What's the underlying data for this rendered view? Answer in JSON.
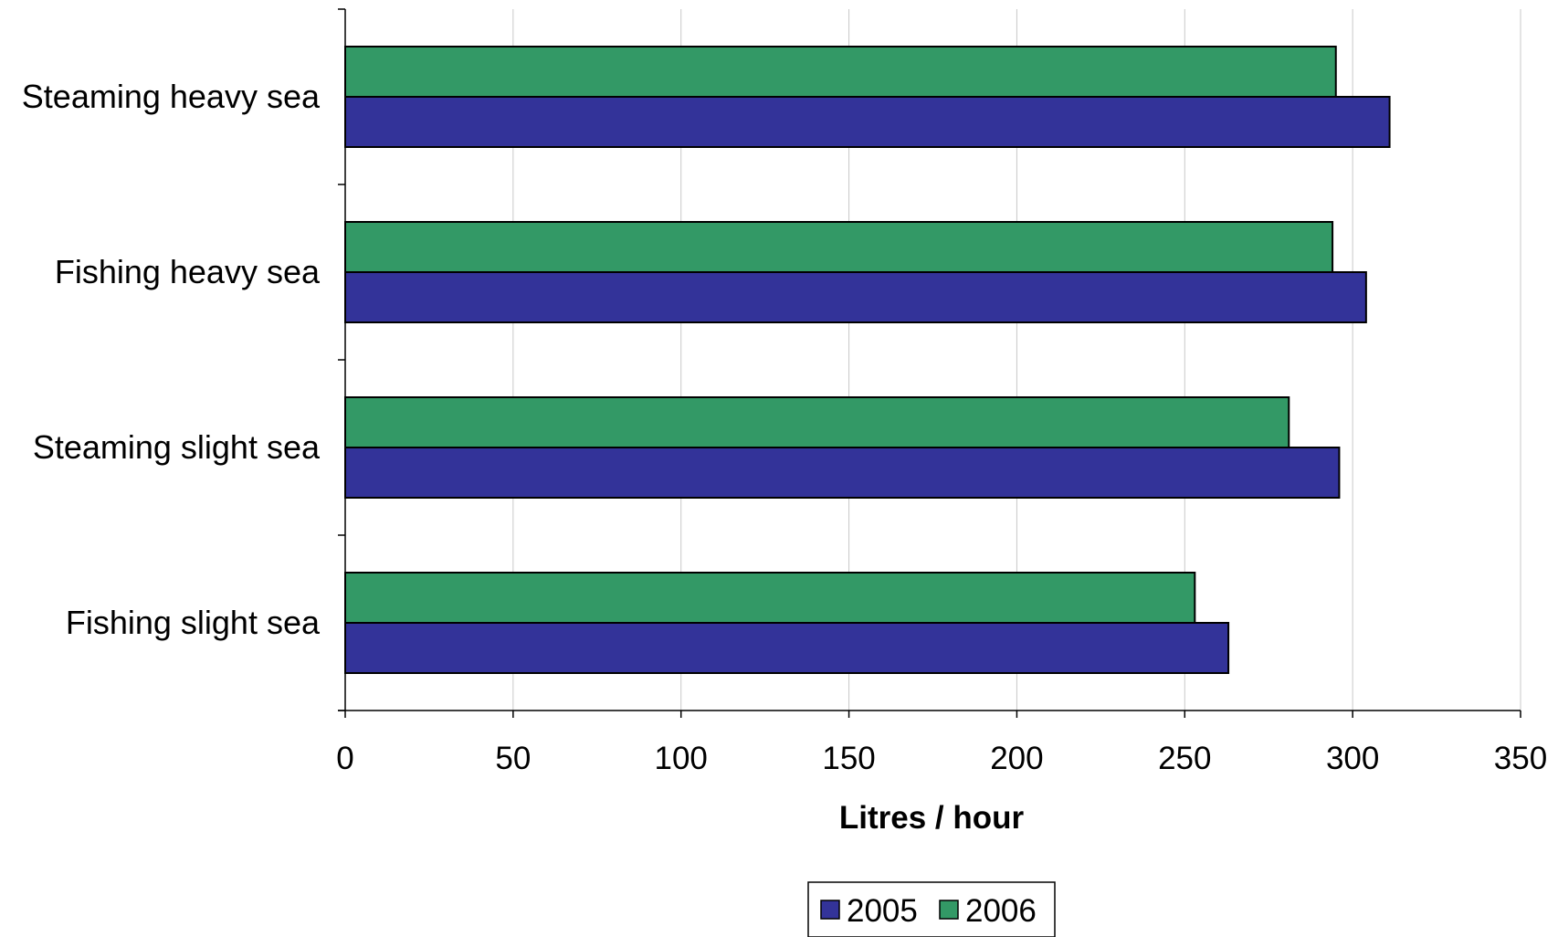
{
  "chart_data": {
    "type": "bar",
    "orientation": "horizontal",
    "categories": [
      "Steaming heavy sea",
      "Fishing heavy sea",
      "Steaming slight sea",
      "Fishing slight sea"
    ],
    "series": [
      {
        "name": "2005",
        "color": "#333399",
        "values": [
          311,
          304,
          296,
          263
        ]
      },
      {
        "name": "2006",
        "color": "#339966",
        "values": [
          295,
          294,
          281,
          253
        ]
      }
    ],
    "xlabel": "Litres / hour",
    "ylabel": "",
    "title": "",
    "xlim": [
      0,
      350
    ],
    "xticks": [
      "0",
      "50",
      "100",
      "150",
      "200",
      "250",
      "300",
      "350"
    ],
    "grid": "vertical",
    "legend_position": "bottom"
  }
}
